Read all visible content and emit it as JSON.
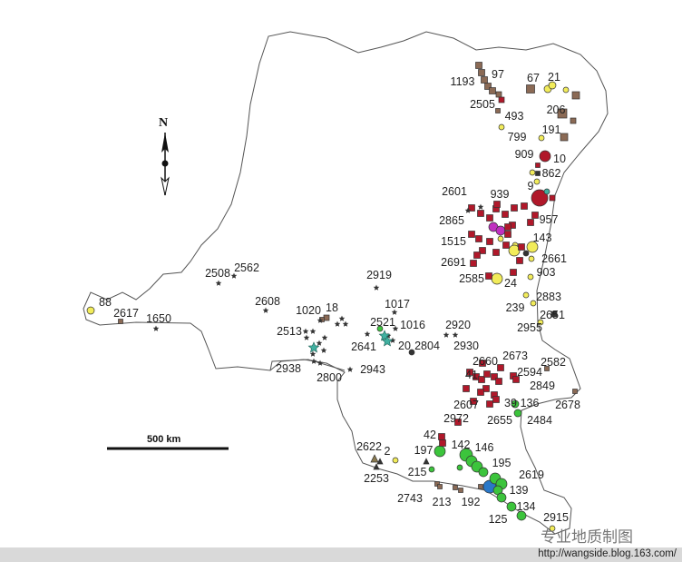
{
  "map": {
    "north_label": "N",
    "scale_label": "500 km",
    "labels": [
      "1193",
      "97",
      "67",
      "21",
      "2505",
      "493",
      "206",
      "799",
      "191",
      "909",
      "10",
      "862",
      "9",
      "2601",
      "939",
      "2865",
      "957",
      "1515",
      "143",
      "2691",
      "2661",
      "903",
      "2585",
      "24",
      "2883",
      "239",
      "2651",
      "2955",
      "2920",
      "2930",
      "2660",
      "2673",
      "2582",
      "41",
      "2594",
      "2849",
      "2607",
      "39",
      "136",
      "2678",
      "2655",
      "2484",
      "2972",
      "42",
      "142",
      "146",
      "197",
      "2622",
      "2",
      "195",
      "215",
      "2253",
      "2619",
      "139",
      "2743",
      "213",
      "192",
      "134",
      "125",
      "2915",
      "88",
      "2617",
      "1650",
      "2508",
      "2562",
      "2608",
      "1020",
      "18",
      "2513",
      "2521",
      "1017",
      "1016",
      "2641",
      "20",
      "2804",
      "2919",
      "2938",
      "2800",
      "2943"
    ],
    "marker_colors": {
      "brown": "#8b6a55",
      "red": "#b0182a",
      "yellow": "#f2ec5a",
      "green": "#3cc43c",
      "magenta": "#c030c0",
      "blue": "#2a78c8",
      "teal": "#40b0a0",
      "dark": "#333333",
      "olive": "#8a7a50"
    },
    "outline_color": "#555555"
  },
  "watermark": "专业地质制图",
  "footer": {
    "url": "http://wangside.blog.163.com/"
  }
}
